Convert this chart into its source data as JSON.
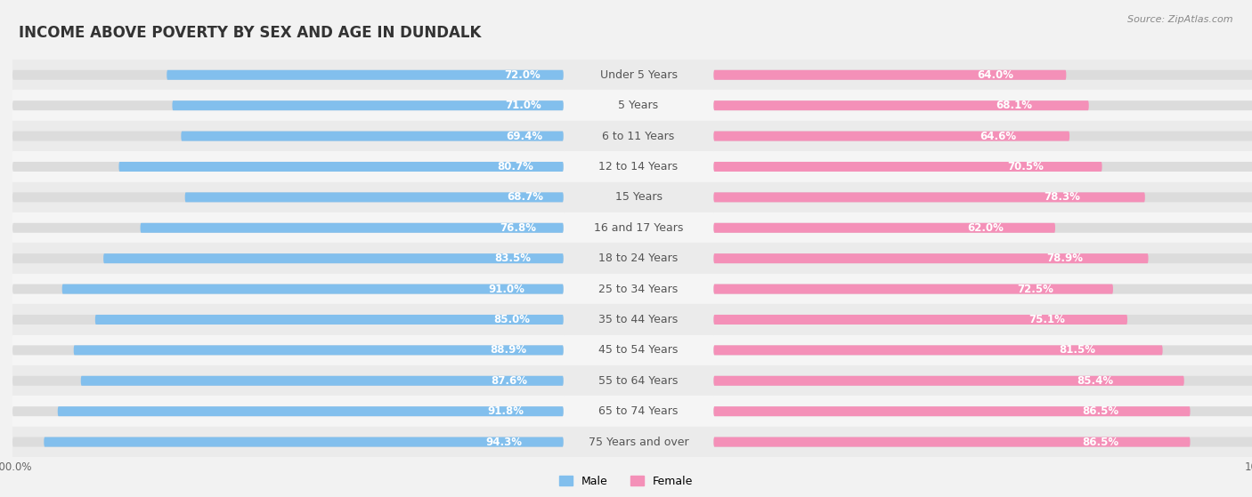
{
  "title": "INCOME ABOVE POVERTY BY SEX AND AGE IN DUNDALK",
  "source": "Source: ZipAtlas.com",
  "categories": [
    "Under 5 Years",
    "5 Years",
    "6 to 11 Years",
    "12 to 14 Years",
    "15 Years",
    "16 and 17 Years",
    "18 to 24 Years",
    "25 to 34 Years",
    "35 to 44 Years",
    "45 to 54 Years",
    "55 to 64 Years",
    "65 to 74 Years",
    "75 Years and over"
  ],
  "male_values": [
    72.0,
    71.0,
    69.4,
    80.7,
    68.7,
    76.8,
    83.5,
    91.0,
    85.0,
    88.9,
    87.6,
    91.8,
    94.3
  ],
  "female_values": [
    64.0,
    68.1,
    64.6,
    70.5,
    78.3,
    62.0,
    78.9,
    72.5,
    75.1,
    81.5,
    85.4,
    86.5,
    86.5
  ],
  "male_color": "#82BFED",
  "female_color": "#F490B8",
  "male_label": "Male",
  "female_label": "Female",
  "background_color": "#F2F2F2",
  "bar_bg_color": "#DCDCDC",
  "title_fontsize": 12,
  "label_fontsize": 9,
  "value_fontsize": 8.5,
  "source_fontsize": 8,
  "legend_fontsize": 9
}
